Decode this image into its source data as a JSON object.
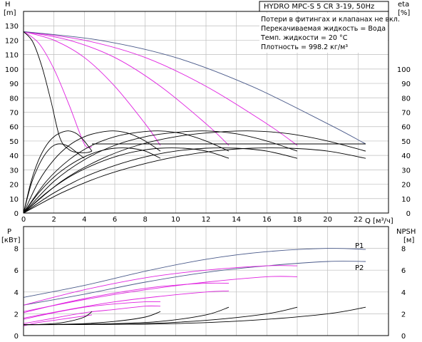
{
  "chart_data": [
    {
      "type": "line",
      "title": "HYDRO MPC-S 5 CR 3-19, 50Hz",
      "notes": [
        "Потери в фитингах и клапанах не вкл.",
        "Перекачиваемая жидкость = Вода",
        "Темп. жидкости = 20 °C",
        "Плотность = 998.2 кг/м³"
      ],
      "xlabel": "Q [м³/ч]",
      "ylabel": "H",
      "ylabel_unit": "[m]",
      "y2label": "eta",
      "y2label_unit": "[%]",
      "xlim": [
        0,
        24
      ],
      "ylim": [
        0,
        140
      ],
      "y2lim": [
        0,
        140
      ],
      "xticks": [
        0,
        2,
        4,
        6,
        8,
        10,
        12,
        14,
        16,
        18,
        20,
        22
      ],
      "yticks": [
        0,
        10,
        20,
        30,
        40,
        50,
        60,
        70,
        80,
        90,
        100,
        110,
        120,
        130
      ],
      "y2ticks": [
        0,
        10,
        20,
        30,
        40,
        50,
        60,
        70,
        80,
        90,
        100
      ],
      "grid": true,
      "series": [
        {
          "kind": "head",
          "color": "#e020e0",
          "x": [
            0,
            1,
            2,
            3,
            4,
            4.5
          ],
          "y": [
            126,
            118,
            100,
            75,
            48,
            46
          ]
        },
        {
          "kind": "head",
          "color": "#e020e0",
          "x": [
            0,
            2,
            4,
            6,
            8,
            9
          ],
          "y": [
            126,
            120,
            108,
            88,
            62,
            47
          ]
        },
        {
          "kind": "head",
          "color": "#e020e0",
          "x": [
            0,
            3,
            6,
            9,
            12,
            13.5
          ],
          "y": [
            126,
            120,
            108,
            88,
            62,
            47
          ]
        },
        {
          "kind": "head",
          "color": "#e020e0",
          "x": [
            0,
            4,
            8,
            12,
            16,
            18
          ],
          "y": [
            126,
            120,
            108,
            88,
            62,
            47
          ]
        },
        {
          "kind": "head",
          "color": "#4a5a8a",
          "x": [
            0,
            5,
            10,
            15,
            20,
            22.5
          ],
          "y": [
            126,
            120,
            108,
            88,
            62,
            48
          ]
        },
        {
          "kind": "head",
          "color": "#000000",
          "x": [
            0,
            0.6,
            1.2,
            1.8,
            2.4,
            3.0,
            3.6,
            4.2,
            4.5
          ],
          "y": [
            126,
            119,
            102,
            78,
            52,
            44,
            42,
            42,
            43
          ]
        },
        {
          "kind": "eta",
          "color": "#000000",
          "x": [
            0,
            0.5,
            1,
            1.5,
            2,
            2.5,
            3,
            3.5,
            4,
            4.5
          ],
          "y": [
            0,
            22,
            37,
            47,
            53,
            56,
            57,
            55,
            50,
            43
          ]
        },
        {
          "kind": "eta",
          "color": "#000000",
          "x": [
            0,
            1,
            2,
            3,
            4,
            5,
            6,
            7,
            8,
            9
          ],
          "y": [
            0,
            22,
            37,
            47,
            53,
            56,
            57,
            55,
            50,
            43
          ]
        },
        {
          "kind": "eta",
          "color": "#000000",
          "x": [
            0,
            1.5,
            3,
            4.5,
            6,
            7.5,
            9,
            10.5,
            12,
            13.5
          ],
          "y": [
            0,
            22,
            37,
            47,
            53,
            56,
            57,
            55,
            50,
            43
          ]
        },
        {
          "kind": "eta",
          "color": "#000000",
          "x": [
            0,
            2,
            4,
            6,
            8,
            10,
            12,
            14,
            16,
            18
          ],
          "y": [
            0,
            22,
            37,
            47,
            53,
            56,
            57,
            55,
            50,
            43
          ]
        },
        {
          "kind": "eta",
          "color": "#000000",
          "x": [
            0,
            2.5,
            5,
            7.5,
            10,
            12.5,
            15,
            17.5,
            20,
            22.5
          ],
          "y": [
            0,
            22,
            37,
            47,
            53,
            56,
            57,
            55,
            50,
            43
          ]
        },
        {
          "kind": "eta",
          "color": "#000000",
          "x": [
            0,
            0.5,
            1,
            1.5,
            2,
            2.5,
            3,
            3.5,
            4
          ],
          "y": [
            0,
            20,
            33,
            42,
            47,
            48,
            46,
            42,
            38
          ]
        },
        {
          "kind": "eta",
          "color": "#000000",
          "x": [
            0,
            1,
            2,
            3,
            4,
            5,
            6,
            7,
            8,
            9
          ],
          "y": [
            0,
            14,
            25,
            33,
            39,
            43,
            45,
            45,
            43,
            38
          ]
        },
        {
          "kind": "eta",
          "color": "#000000",
          "x": [
            0,
            1.5,
            3,
            4.5,
            6,
            7.5,
            9,
            10.5,
            12,
            13.5
          ],
          "y": [
            0,
            14,
            25,
            33,
            39,
            43,
            45,
            45,
            43,
            38
          ]
        },
        {
          "kind": "eta",
          "color": "#000000",
          "x": [
            0,
            2,
            4,
            6,
            8,
            10,
            12,
            14,
            16,
            18
          ],
          "y": [
            0,
            14,
            25,
            33,
            39,
            43,
            45,
            45,
            43,
            38
          ]
        },
        {
          "kind": "eta",
          "color": "#000000",
          "x": [
            0,
            2.5,
            5,
            7.5,
            10,
            12.5,
            15,
            17.5,
            20,
            22.5
          ],
          "y": [
            0,
            14,
            25,
            33,
            39,
            43,
            45,
            45,
            43,
            38
          ]
        },
        {
          "kind": "eta",
          "color": "#000000",
          "x": [
            4.5,
            8,
            12,
            16,
            20,
            22.5
          ],
          "y": [
            48,
            48,
            48,
            48,
            48,
            48
          ]
        }
      ]
    },
    {
      "type": "line",
      "ylabel": "P",
      "ylabel_unit": "[кВт]",
      "y2label": "NPSH",
      "y2label_unit": "[м]",
      "xlim": [
        0,
        24
      ],
      "ylim": [
        0,
        10
      ],
      "y2lim": [
        0,
        10
      ],
      "yticks": [
        0,
        2,
        4,
        6,
        8
      ],
      "y2ticks": [
        0,
        2,
        4,
        6,
        8
      ],
      "grid": true,
      "series": [
        {
          "name": "P1",
          "kind": "power",
          "color": "#4a5a8a",
          "x": [
            0,
            4,
            8,
            12,
            16,
            20,
            22.5
          ],
          "y": [
            3.5,
            4.6,
            5.9,
            7.0,
            7.7,
            8.0,
            7.9
          ]
        },
        {
          "name": "P2",
          "kind": "power",
          "color": "#4a5a8a",
          "x": [
            0,
            4,
            8,
            12,
            16,
            20,
            22.5
          ],
          "y": [
            2.8,
            3.8,
            4.9,
            5.8,
            6.4,
            6.8,
            6.8
          ]
        },
        {
          "kind": "power",
          "color": "#e020e0",
          "x": [
            0,
            4,
            8,
            12,
            16,
            18
          ],
          "y": [
            2.8,
            4.2,
            5.3,
            6.0,
            6.4,
            6.4
          ]
        },
        {
          "kind": "power",
          "color": "#e020e0",
          "x": [
            0,
            4,
            8,
            12,
            16,
            18
          ],
          "y": [
            2.2,
            3.3,
            4.2,
            4.9,
            5.4,
            5.4
          ]
        },
        {
          "kind": "power",
          "color": "#e020e0",
          "x": [
            0,
            3,
            6,
            9,
            12,
            13.5
          ],
          "y": [
            2.1,
            3.1,
            3.9,
            4.5,
            4.8,
            4.8
          ]
        },
        {
          "kind": "power",
          "color": "#e020e0",
          "x": [
            0,
            3,
            6,
            9,
            12,
            13.5
          ],
          "y": [
            1.6,
            2.4,
            3.1,
            3.6,
            4.0,
            4.1
          ]
        },
        {
          "kind": "power",
          "color": "#e020e0",
          "x": [
            0,
            2,
            4,
            6,
            8,
            9
          ],
          "y": [
            1.5,
            2.1,
            2.6,
            2.9,
            3.1,
            3.1
          ]
        },
        {
          "kind": "power",
          "color": "#e020e0",
          "x": [
            0,
            2,
            4,
            6,
            8,
            9
          ],
          "y": [
            1.1,
            1.6,
            2.1,
            2.4,
            2.7,
            2.7
          ]
        },
        {
          "kind": "power",
          "color": "#e020e0",
          "x": [
            0,
            1,
            2,
            3,
            4,
            4.5
          ],
          "y": [
            0.9,
            1.2,
            1.4,
            1.6,
            1.8,
            1.9
          ]
        },
        {
          "kind": "npsh",
          "color": "#000000",
          "x": [
            0,
            1,
            2,
            3,
            4,
            4.5
          ],
          "y": [
            1.0,
            1.02,
            1.1,
            1.3,
            1.7,
            2.2
          ]
        },
        {
          "kind": "npsh",
          "color": "#000000",
          "x": [
            0,
            2,
            4,
            6,
            8,
            9
          ],
          "y": [
            1.0,
            1.02,
            1.1,
            1.3,
            1.7,
            2.2
          ]
        },
        {
          "kind": "npsh",
          "color": "#000000",
          "x": [
            0,
            3,
            6,
            9,
            12,
            13.5
          ],
          "y": [
            1.0,
            1.02,
            1.1,
            1.3,
            1.9,
            2.6
          ]
        },
        {
          "kind": "npsh",
          "color": "#000000",
          "x": [
            0,
            4,
            8,
            12,
            16,
            18
          ],
          "y": [
            1.0,
            1.02,
            1.1,
            1.4,
            2.0,
            2.6
          ]
        },
        {
          "kind": "npsh",
          "color": "#000000",
          "x": [
            0,
            5,
            10,
            15,
            20,
            22.5
          ],
          "y": [
            1.0,
            1.02,
            1.1,
            1.4,
            2.0,
            2.6
          ]
        }
      ]
    }
  ]
}
